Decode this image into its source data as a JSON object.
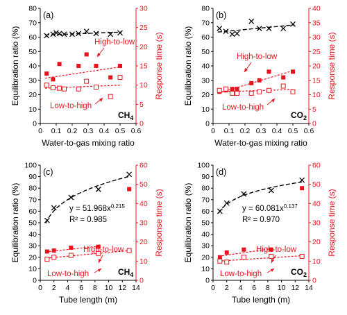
{
  "chart_data": [
    {
      "id": "a",
      "panel_label": "(a)",
      "type": "scatter",
      "gas_label": "CH",
      "gas_sub": "4",
      "xlabel": "Water-to-gas  mixing ratio",
      "ylabel_left": "Equilibration ratio (%)",
      "ylabel_right": "Response time (s)",
      "xlim": [
        0,
        0.6
      ],
      "xticks": [
        "0",
        "0.1",
        "0.2",
        "0.3",
        "0.4",
        "0.5",
        "0.6"
      ],
      "ylim_left": [
        0,
        80
      ],
      "yticks_left": [
        "0",
        "10",
        "20",
        "30",
        "40",
        "50",
        "60",
        "70",
        "80"
      ],
      "ylim_right": [
        0,
        30
      ],
      "yticks_right": [
        "0",
        "5",
        "10",
        "15",
        "20",
        "25",
        "30"
      ],
      "annotations": [
        "High-to-low",
        "Low-to-high"
      ],
      "series": [
        {
          "role": "equilibration",
          "marker": "cross",
          "color": "#000000",
          "x": [
            0.04,
            0.08,
            0.1,
            0.12,
            0.15,
            0.2,
            0.24,
            0.29,
            0.35,
            0.44,
            0.5
          ],
          "y": [
            61,
            62,
            63,
            62.5,
            62,
            62,
            62.5,
            64,
            62.5,
            62,
            63
          ],
          "fit": {
            "kind": "linear",
            "x": [
              0.03,
              0.51
            ],
            "y": [
              61.5,
              63.5
            ]
          }
        },
        {
          "role": "response high-to-low",
          "marker": "filled-square",
          "color": "#e8141d",
          "x": [
            0.04,
            0.08,
            0.12,
            0.24,
            0.29,
            0.35,
            0.44,
            0.5
          ],
          "y": [
            13,
            11.5,
            15.5,
            15,
            18,
            15,
            12,
            15
          ],
          "fit": {
            "kind": "linear",
            "x": [
              0.03,
              0.51
            ],
            "y": [
              11.8,
              14.8
            ]
          }
        },
        {
          "role": "response low-to-high",
          "marker": "open-square",
          "color": "#e8141d",
          "x": [
            0.04,
            0.08,
            0.12,
            0.15,
            0.24,
            0.29,
            0.35,
            0.44,
            0.5
          ],
          "y": [
            10,
            9.3,
            9.2,
            9,
            9,
            11,
            9.5,
            7,
            12
          ],
          "fit": {
            "kind": "linear",
            "x": [
              0.03,
              0.51
            ],
            "y": [
              9.2,
              10
            ]
          }
        }
      ]
    },
    {
      "id": "b",
      "panel_label": "(b)",
      "type": "scatter",
      "gas_label": "CO",
      "gas_sub": "2",
      "xlabel": "Water-to-gas  mixing ratio",
      "ylabel_left": "Equilibration ratio (%)",
      "ylabel_right": "Response time (s)",
      "xlim": [
        0,
        0.6
      ],
      "xticks": [
        "0",
        "0.1",
        "0.2",
        "0.3",
        "0.4",
        "0.5",
        "0.6"
      ],
      "ylim_left": [
        0,
        80
      ],
      "yticks_left": [
        "0",
        "10",
        "20",
        "30",
        "40",
        "50",
        "60",
        "70",
        "80"
      ],
      "ylim_right": [
        0,
        40
      ],
      "yticks_right": [
        "0",
        "5",
        "10",
        "15",
        "20",
        "25",
        "30",
        "35",
        "40"
      ],
      "annotations": [
        "High-to-low",
        "Low-to-high"
      ],
      "series": [
        {
          "role": "equilibration",
          "marker": "cross",
          "color": "#000000",
          "x": [
            0.04,
            0.08,
            0.12,
            0.15,
            0.24,
            0.29,
            0.35,
            0.44,
            0.5
          ],
          "y": [
            66,
            64,
            62,
            62.5,
            71,
            66,
            66,
            66,
            69
          ],
          "fit": {
            "kind": "linear",
            "x": [
              0.03,
              0.51
            ],
            "y": [
              63.5,
              68.5
            ]
          }
        },
        {
          "role": "response high-to-low",
          "marker": "filled-square",
          "color": "#e8141d",
          "x": [
            0.04,
            0.08,
            0.12,
            0.15,
            0.24,
            0.29,
            0.35,
            0.44,
            0.5
          ],
          "y": [
            11,
            11.5,
            12,
            12,
            14,
            15,
            18,
            16,
            18
          ],
          "fit": {
            "kind": "linear",
            "x": [
              0.03,
              0.51
            ],
            "y": [
              10.5,
              18.5
            ]
          }
        },
        {
          "role": "response low-to-high",
          "marker": "open-square",
          "color": "#e8141d",
          "x": [
            0.04,
            0.08,
            0.12,
            0.15,
            0.24,
            0.29,
            0.35,
            0.44,
            0.5
          ],
          "y": [
            11.5,
            12,
            10.5,
            10.5,
            10.5,
            11,
            11.5,
            13,
            11
          ],
          "fit": {
            "kind": "linear",
            "x": [
              0.03,
              0.51
            ],
            "y": [
              11,
              11.8
            ]
          }
        }
      ]
    },
    {
      "id": "c",
      "panel_label": "(c)",
      "type": "scatter",
      "gas_label": "CH",
      "gas_sub": "4",
      "xlabel": "Tube length (m)",
      "ylabel_left": "Equilibration ratio (%)",
      "ylabel_right": "Response time (s)",
      "xlim": [
        0,
        14
      ],
      "xticks": [
        "0",
        "2",
        "4",
        "6",
        "8",
        "10",
        "12",
        "14"
      ],
      "ylim_left": [
        0,
        100
      ],
      "yticks_left": [
        "0",
        "10",
        "20",
        "30",
        "40",
        "50",
        "60",
        "70",
        "80",
        "90",
        "100"
      ],
      "ylim_right": [
        0,
        60
      ],
      "yticks_right": [
        "0",
        "10",
        "20",
        "30",
        "40",
        "50",
        "60"
      ],
      "equation": "y = 51.968x",
      "equation_exp": "0.215",
      "r2": "R² = 0.985",
      "annotations": [
        "High-to-low",
        "Low-to-high"
      ],
      "series": [
        {
          "role": "equilibration",
          "marker": "cross",
          "color": "#000000",
          "x": [
            1,
            2,
            4.5,
            8.5,
            13
          ],
          "y": [
            52,
            63,
            72,
            79,
            92
          ],
          "fit": {
            "kind": "power",
            "a": 51.968,
            "b": 0.215,
            "from": 0.8,
            "to": 13
          }
        },
        {
          "role": "response high-to-low",
          "marker": "filled-square",
          "color": "#e8141d",
          "x": [
            1,
            2,
            4.5,
            8.5,
            13
          ],
          "y": [
            15,
            15.5,
            17,
            17.5,
            47.5
          ],
          "fit": {
            "kind": "linear",
            "x": [
              0.8,
              8.6
            ],
            "y": [
              14.8,
              17.8
            ]
          }
        },
        {
          "role": "response low-to-high",
          "marker": "open-square",
          "color": "#e8141d",
          "x": [
            1,
            2,
            4.5,
            8.5,
            13
          ],
          "y": [
            11,
            12,
            13,
            14,
            15.5
          ],
          "fit": {
            "kind": "linear",
            "x": [
              0.8,
              13
            ],
            "y": [
              11.5,
              15.5
            ]
          }
        }
      ]
    },
    {
      "id": "d",
      "panel_label": "(d)",
      "type": "scatter",
      "gas_label": "CO",
      "gas_sub": "2",
      "xlabel": "Tube length (m)",
      "ylabel_left": "Equilibration ratio (%)",
      "ylabel_right": "Response time (s)",
      "xlim": [
        0,
        14
      ],
      "xticks": [
        "0",
        "2",
        "4",
        "6",
        "8",
        "10",
        "12",
        "14"
      ],
      "ylim_left": [
        0,
        100
      ],
      "yticks_left": [
        "0",
        "10",
        "20",
        "30",
        "40",
        "50",
        "60",
        "70",
        "80",
        "90",
        "100"
      ],
      "ylim_right": [
        0,
        60
      ],
      "yticks_right": [
        "0",
        "10",
        "20",
        "30",
        "40",
        "50",
        "60"
      ],
      "equation": "y = 60.081x",
      "equation_exp": "0.137",
      "r2": "R² = 0.970",
      "annotations": [
        "High-to-low",
        "Low-to-high"
      ],
      "series": [
        {
          "role": "equilibration",
          "marker": "cross",
          "color": "#000000",
          "x": [
            1,
            2,
            4.5,
            8.5,
            13
          ],
          "y": [
            60,
            67,
            75,
            78,
            87
          ],
          "fit": {
            "kind": "power",
            "a": 60.081,
            "b": 0.137,
            "from": 0.8,
            "to": 13
          }
        },
        {
          "role": "response high-to-low",
          "marker": "filled-square",
          "color": "#e8141d",
          "x": [
            1,
            2,
            4.5,
            8.5,
            13
          ],
          "y": [
            12,
            14.5,
            16,
            16,
            48
          ],
          "fit": {
            "kind": "linear",
            "x": [
              0.8,
              8.6
            ],
            "y": [
              12.5,
              16.5
            ]
          }
        },
        {
          "role": "response low-to-high",
          "marker": "open-square",
          "color": "#e8141d",
          "x": [
            1,
            2,
            4.5,
            8.5,
            13
          ],
          "y": [
            10,
            9.5,
            12,
            12.5,
            12.5
          ],
          "fit": {
            "kind": "linear",
            "x": [
              0.8,
              13
            ],
            "y": [
              10,
              12.8
            ]
          }
        }
      ]
    }
  ]
}
